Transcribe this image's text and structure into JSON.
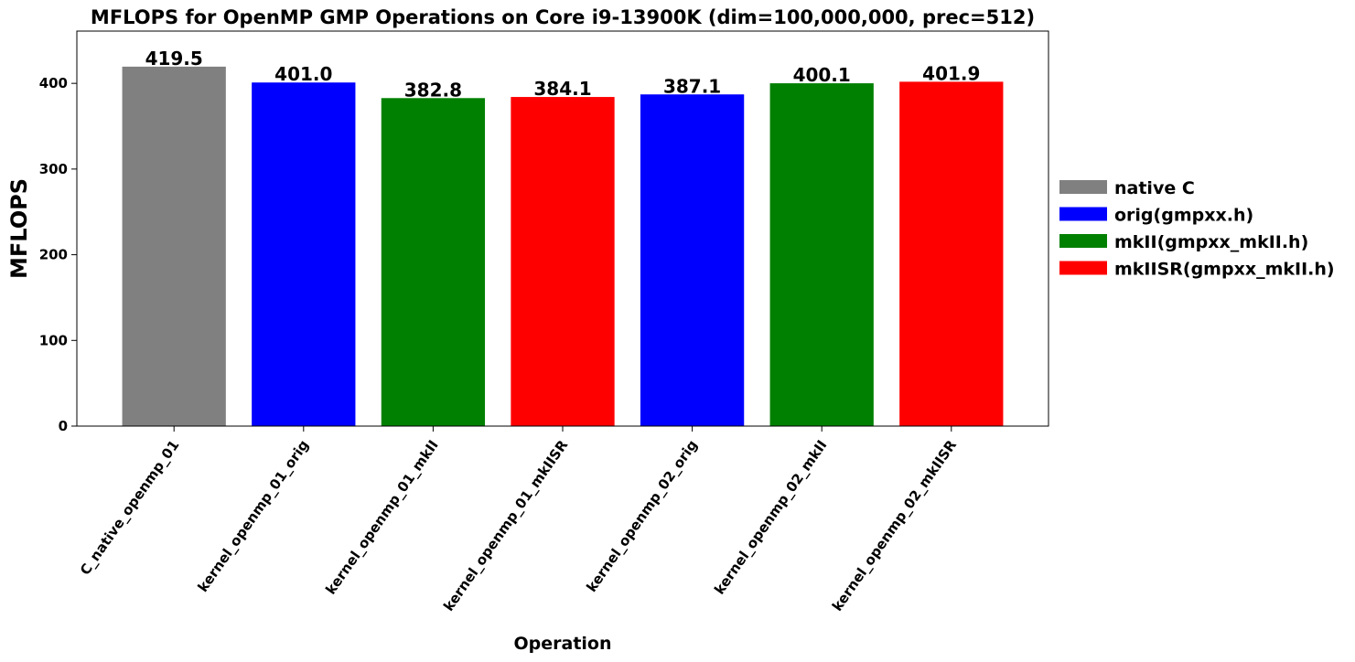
{
  "chart_data": {
    "type": "bar",
    "title": "MFLOPS for OpenMP GMP Operations on Core i9-13900K (dim=100,000,000, prec=512)",
    "xlabel": "Operation",
    "ylabel": "MFLOPS",
    "ylim": [
      0,
      461
    ],
    "yticks": [
      0,
      100,
      200,
      300,
      400
    ],
    "grid": false,
    "legend_position": "right",
    "categories": [
      "C_native_openmp_01",
      "kernel_openmp_01_orig",
      "kernel_openmp_01_mkII",
      "kernel_openmp_01_mkIISR",
      "kernel_openmp_02_orig",
      "kernel_openmp_02_mkII",
      "kernel_openmp_02_mkIISR"
    ],
    "values": [
      419.5,
      401.0,
      382.8,
      384.1,
      387.1,
      400.1,
      401.9
    ],
    "value_labels": [
      "419.5",
      "401.0",
      "382.8",
      "384.1",
      "387.1",
      "400.1",
      "401.9"
    ],
    "bar_series": [
      0,
      1,
      2,
      3,
      1,
      2,
      3
    ],
    "legend": [
      {
        "name": "native C",
        "color": "#808080"
      },
      {
        "name": "orig(gmpxx.h)",
        "color": "#0000ff"
      },
      {
        "name": "mkII(gmpxx_mkII.h)",
        "color": "#008000"
      },
      {
        "name": "mkIISR(gmpxx_mkII.h)",
        "color": "#ff0000"
      }
    ]
  }
}
